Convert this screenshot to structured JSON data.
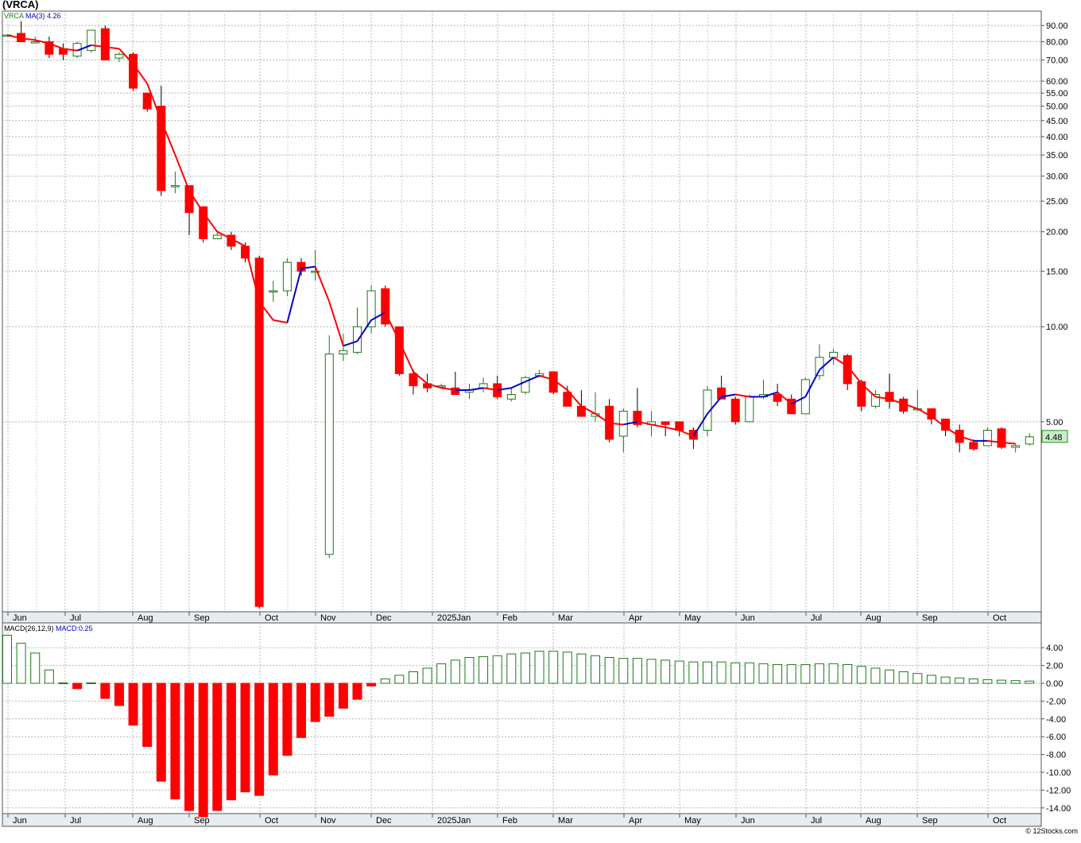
{
  "title": "(VRCA)",
  "legend": {
    "symbol": "VRCA",
    "ma_label": "MA(3)",
    "ma_value": "4.26",
    "macd_label": "MACD(26,12,9)",
    "macd_value_label": "MACD:0.25"
  },
  "last_price_label": "4.48",
  "footer": "© 12Stocks.com",
  "colors": {
    "up_candle": "#1a7a1a",
    "down_candle": "#ff0000",
    "ma_rising": "#0000cc",
    "ma_falling": "#ff0000",
    "grid": "#b4b4b4",
    "axis_band": "#e6ecf0",
    "last_price_box": "#c6efc6"
  },
  "chart_data": [
    {
      "type": "candlestick",
      "scale": "log",
      "ylim": [
        1.25,
        100
      ],
      "y_ticks": [
        "90.00",
        "80.00",
        "70.00",
        "60.00",
        "55.00",
        "50.00",
        "45.00",
        "40.00",
        "35.00",
        "30.00",
        "25.00",
        "20.00",
        "15.00",
        "10.00",
        "5.00"
      ],
      "y_tick_values": [
        90,
        80,
        70,
        60,
        55,
        50,
        45,
        40,
        35,
        30,
        25,
        20,
        15,
        10,
        5
      ],
      "x_labels": [
        "Jun",
        "Jul",
        "Aug",
        "Sep",
        "Oct",
        "Nov",
        "Dec",
        "2025Jan",
        "Feb",
        "Mar",
        "Apr",
        "May",
        "Jun",
        "Jul",
        "Aug",
        "Sep",
        "Oct"
      ],
      "grid": true,
      "candles": [
        {
          "o": 84,
          "h": 84,
          "l": 84,
          "c": 84
        },
        {
          "o": 85,
          "h": 93,
          "l": 80,
          "c": 80
        },
        {
          "o": 80,
          "h": 83,
          "l": 79,
          "c": 80
        },
        {
          "o": 80,
          "h": 83,
          "l": 71,
          "c": 73
        },
        {
          "o": 76,
          "h": 79,
          "l": 70,
          "c": 73
        },
        {
          "o": 72,
          "h": 80,
          "l": 71,
          "c": 79
        },
        {
          "o": 75,
          "h": 87,
          "l": 74,
          "c": 87
        },
        {
          "o": 88,
          "h": 90,
          "l": 70,
          "c": 70
        },
        {
          "o": 71,
          "h": 74,
          "l": 69,
          "c": 73
        },
        {
          "o": 73,
          "h": 74,
          "l": 56,
          "c": 57
        },
        {
          "o": 55,
          "h": 55,
          "l": 48,
          "c": 49
        },
        {
          "o": 50,
          "h": 58,
          "l": 26,
          "c": 27
        },
        {
          "o": 28,
          "h": 31,
          "l": 26.5,
          "c": 28
        },
        {
          "o": 28,
          "h": 28,
          "l": 19.5,
          "c": 23
        },
        {
          "o": 24,
          "h": 24,
          "l": 18.5,
          "c": 19
        },
        {
          "o": 19,
          "h": 20,
          "l": 19,
          "c": 19.5
        },
        {
          "o": 19.5,
          "h": 20,
          "l": 17.5,
          "c": 18
        },
        {
          "o": 18,
          "h": 18.5,
          "l": 16,
          "c": 16.5
        },
        {
          "o": 16.5,
          "h": 16.8,
          "l": 1.28,
          "c": 1.3
        },
        {
          "o": 13,
          "h": 14,
          "l": 12,
          "c": 13
        },
        {
          "o": 13,
          "h": 16.5,
          "l": 12.5,
          "c": 16
        },
        {
          "o": 16,
          "h": 16.5,
          "l": 14.5,
          "c": 15
        },
        {
          "o": 15,
          "h": 17.5,
          "l": 14,
          "c": 15
        },
        {
          "o": 1.9,
          "h": 9.4,
          "l": 1.85,
          "c": 8.2
        },
        {
          "o": 8.2,
          "h": 9.5,
          "l": 7.8,
          "c": 8.4
        },
        {
          "o": 8.3,
          "h": 11.5,
          "l": 8.2,
          "c": 10
        },
        {
          "o": 10,
          "h": 13.5,
          "l": 9.5,
          "c": 13
        },
        {
          "o": 13.2,
          "h": 13.5,
          "l": 10,
          "c": 10.2
        },
        {
          "o": 10,
          "h": 10,
          "l": 7,
          "c": 7.1
        },
        {
          "o": 7.1,
          "h": 7.3,
          "l": 6.1,
          "c": 6.5
        },
        {
          "o": 6.6,
          "h": 7.1,
          "l": 6.2,
          "c": 6.4
        },
        {
          "o": 6.5,
          "h": 6.6,
          "l": 6.4,
          "c": 6.5
        },
        {
          "o": 6.4,
          "h": 7.2,
          "l": 6.2,
          "c": 6.1
        },
        {
          "o": 6.2,
          "h": 6.6,
          "l": 5.9,
          "c": 6.3
        },
        {
          "o": 6.4,
          "h": 6.9,
          "l": 6.2,
          "c": 6.6
        },
        {
          "o": 6.6,
          "h": 7,
          "l": 5.9,
          "c": 6
        },
        {
          "o": 5.9,
          "h": 6.4,
          "l": 5.8,
          "c": 6.1
        },
        {
          "o": 6.2,
          "h": 7,
          "l": 6.1,
          "c": 6.9
        },
        {
          "o": 7,
          "h": 7.3,
          "l": 6.9,
          "c": 7.1
        },
        {
          "o": 7.2,
          "h": 7.2,
          "l": 6.1,
          "c": 6.2
        },
        {
          "o": 6.2,
          "h": 6.5,
          "l": 5.6,
          "c": 5.6
        },
        {
          "o": 5.6,
          "h": 6.3,
          "l": 5.2,
          "c": 5.2
        },
        {
          "o": 5.2,
          "h": 6.2,
          "l": 5,
          "c": 5.3
        },
        {
          "o": 5.6,
          "h": 5.9,
          "l": 4.3,
          "c": 4.4
        },
        {
          "o": 4.5,
          "h": 5.5,
          "l": 4,
          "c": 5.4
        },
        {
          "o": 5.4,
          "h": 6.4,
          "l": 4.8,
          "c": 4.9
        },
        {
          "o": 4.9,
          "h": 5.4,
          "l": 4.5,
          "c": 5
        },
        {
          "o": 5,
          "h": 5,
          "l": 4.5,
          "c": 4.9
        },
        {
          "o": 5,
          "h": 5,
          "l": 4.5,
          "c": 4.7
        },
        {
          "o": 4.7,
          "h": 4.8,
          "l": 4.1,
          "c": 4.4
        },
        {
          "o": 4.7,
          "h": 6.5,
          "l": 4.5,
          "c": 6.3
        },
        {
          "o": 6.4,
          "h": 7,
          "l": 5.9,
          "c": 5.9
        },
        {
          "o": 5.9,
          "h": 6,
          "l": 4.9,
          "c": 5
        },
        {
          "o": 5,
          "h": 6.1,
          "l": 5,
          "c": 6
        },
        {
          "o": 6,
          "h": 6.8,
          "l": 5.9,
          "c": 6.1
        },
        {
          "o": 6.1,
          "h": 6.6,
          "l": 5.6,
          "c": 5.8
        },
        {
          "o": 5.9,
          "h": 6.1,
          "l": 5.3,
          "c": 5.3
        },
        {
          "o": 5.3,
          "h": 6.9,
          "l": 5.3,
          "c": 6.8
        },
        {
          "o": 7,
          "h": 8.8,
          "l": 6.8,
          "c": 8
        },
        {
          "o": 8,
          "h": 8.5,
          "l": 7.6,
          "c": 8.3
        },
        {
          "o": 8.1,
          "h": 8.2,
          "l": 6.3,
          "c": 6.6
        },
        {
          "o": 6.7,
          "h": 6.8,
          "l": 5.4,
          "c": 5.6
        },
        {
          "o": 5.6,
          "h": 6.3,
          "l": 5.5,
          "c": 6.1
        },
        {
          "o": 6.2,
          "h": 7.1,
          "l": 5.5,
          "c": 5.8
        },
        {
          "o": 5.9,
          "h": 6,
          "l": 5.3,
          "c": 5.4
        },
        {
          "o": 5.5,
          "h": 6.3,
          "l": 5.4,
          "c": 5.5
        },
        {
          "o": 5.5,
          "h": 5.5,
          "l": 4.9,
          "c": 5.1
        },
        {
          "o": 5.1,
          "h": 5.1,
          "l": 4.5,
          "c": 4.7
        },
        {
          "o": 4.7,
          "h": 4.9,
          "l": 4,
          "c": 4.3
        },
        {
          "o": 4.3,
          "h": 4.4,
          "l": 4.05,
          "c": 4.1
        },
        {
          "o": 4.2,
          "h": 4.8,
          "l": 4.2,
          "c": 4.7
        },
        {
          "o": 4.75,
          "h": 4.8,
          "l": 4.1,
          "c": 4.15
        },
        {
          "o": 4.15,
          "h": 4.25,
          "l": 4,
          "c": 4.2
        },
        {
          "o": 4.25,
          "h": 4.6,
          "l": 4.2,
          "c": 4.48
        }
      ],
      "ma3": [
        84,
        82,
        81,
        79,
        76,
        75,
        78,
        77,
        76,
        68,
        59,
        45,
        35,
        27,
        23,
        20,
        19,
        18,
        12,
        10.5,
        10.3,
        15.3,
        15.5,
        12,
        8.7,
        9,
        10.5,
        11.1,
        9,
        7.2,
        6.6,
        6.4,
        6.3,
        6.3,
        6.4,
        6.3,
        6.4,
        6.7,
        7,
        6.8,
        6.3,
        5.6,
        5.3,
        4.95,
        4.9,
        5,
        4.9,
        4.8,
        4.7,
        4.5,
        5.3,
        6,
        6.1,
        6,
        6,
        6.2,
        5.7,
        6,
        7.3,
        8,
        7.5,
        6.6,
        6,
        5.9,
        5.7,
        5.5,
        5.2,
        4.8,
        4.5,
        4.35,
        4.35,
        4.3,
        4.26
      ]
    },
    {
      "type": "bar",
      "title": "MACD(26,12,9)",
      "ylim": [
        -15,
        5
      ],
      "y_ticks": [
        "4.00",
        "2.00",
        "0.00",
        "-2.00",
        "-4.00",
        "-6.00",
        "-8.00",
        "-10.00",
        "-12.00",
        "-14.00"
      ],
      "y_tick_values": [
        4,
        2,
        0,
        -2,
        -4,
        -6,
        -8,
        -10,
        -12,
        -14
      ],
      "values": [
        5.4,
        4.5,
        3.4,
        1.5,
        0.05,
        -0.6,
        0.05,
        -1.7,
        -2.5,
        -4.7,
        -7.1,
        -11,
        -13,
        -14.3,
        -15,
        -14.3,
        -13.1,
        -12.2,
        -12.6,
        -10.3,
        -8.1,
        -6.1,
        -4.3,
        -3.7,
        -2.8,
        -1.8,
        -0.3,
        0.5,
        0.9,
        1.3,
        1.7,
        2.2,
        2.6,
        2.9,
        3.0,
        3.1,
        3.3,
        3.4,
        3.6,
        3.6,
        3.5,
        3.3,
        3.1,
        2.9,
        2.8,
        2.8,
        2.7,
        2.6,
        2.5,
        2.4,
        2.4,
        2.4,
        2.3,
        2.3,
        2.2,
        2.1,
        2.1,
        2.1,
        2.2,
        2.2,
        2.1,
        1.9,
        1.7,
        1.5,
        1.3,
        1.1,
        0.9,
        0.7,
        0.6,
        0.5,
        0.4,
        0.35,
        0.3,
        0.25
      ]
    }
  ]
}
